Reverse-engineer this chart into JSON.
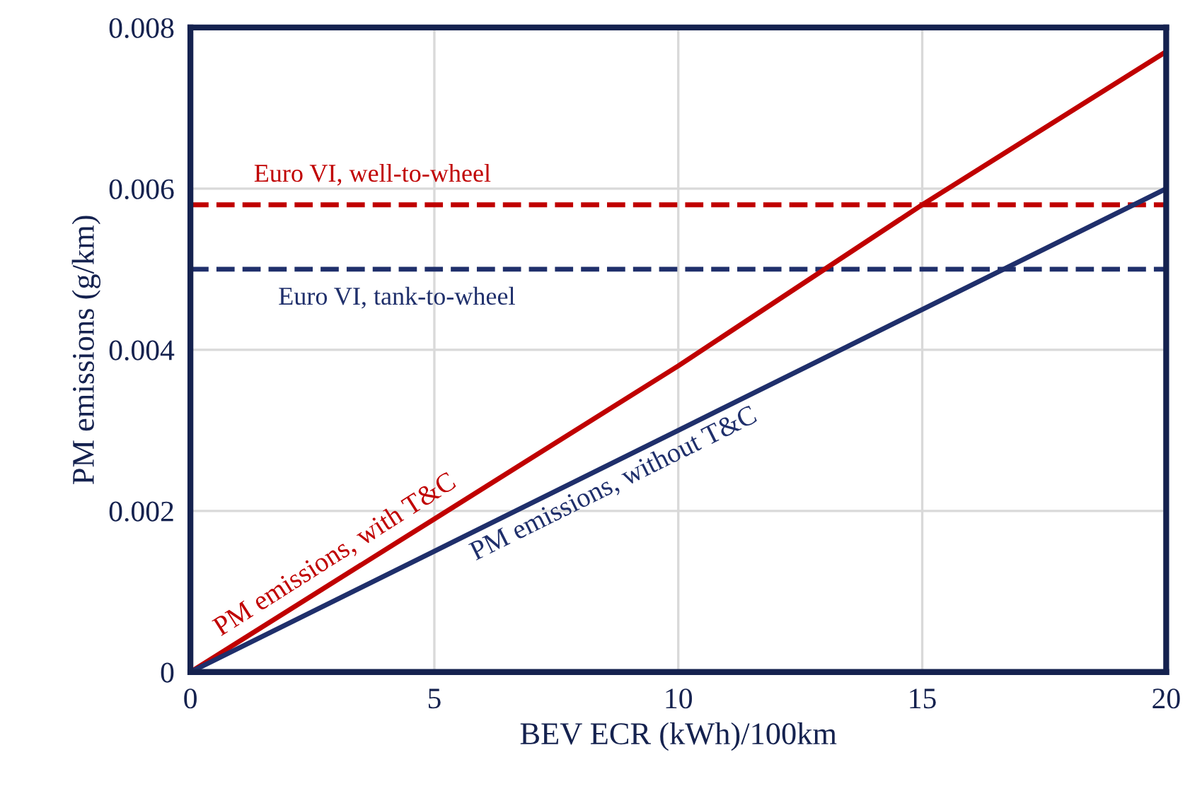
{
  "chart_data": {
    "type": "line",
    "xlabel": "BEV ECR (kWh)/100km",
    "ylabel": "PM emissions (g/km)",
    "xlim": [
      0,
      20
    ],
    "ylim": [
      0,
      0.008
    ],
    "xticks": [
      0,
      5,
      10,
      15,
      20
    ],
    "yticks": [
      0,
      0.002,
      0.004,
      0.006,
      0.008
    ],
    "grid": true,
    "legend": false,
    "marker": "none",
    "line_style": "solid",
    "series": [
      {
        "name": "PM emissions, with T&C",
        "color": "#c00000",
        "x": [
          0,
          5,
          10,
          15,
          20
        ],
        "values": [
          0,
          0.0019,
          0.0038,
          0.0058,
          0.0077
        ]
      },
      {
        "name": "PM emissions, without T&C",
        "color": "#1f2f6b",
        "x": [
          0,
          5,
          10,
          15,
          20
        ],
        "values": [
          0,
          0.0015,
          0.003,
          0.0045,
          0.006
        ]
      }
    ],
    "ref_lines": [
      {
        "axis": "y",
        "value": 0.0058,
        "label": "Euro VI, well-to-wheel",
        "color": "#c00000",
        "line_style": "dashed"
      },
      {
        "axis": "y",
        "value": 0.005,
        "label": "Euro VI, tank-to-wheel",
        "color": "#1f2f6b",
        "line_style": "dashed"
      }
    ]
  }
}
